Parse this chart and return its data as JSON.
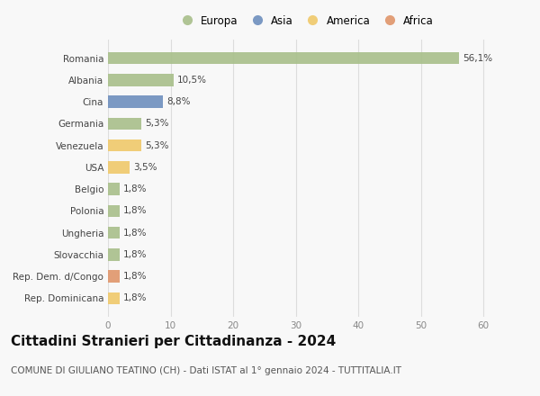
{
  "categories": [
    "Romania",
    "Albania",
    "Cina",
    "Germania",
    "Venezuela",
    "USA",
    "Belgio",
    "Polonia",
    "Ungheria",
    "Slovacchia",
    "Rep. Dem. d/Congo",
    "Rep. Dominicana"
  ],
  "values": [
    56.1,
    10.5,
    8.8,
    5.3,
    5.3,
    3.5,
    1.8,
    1.8,
    1.8,
    1.8,
    1.8,
    1.8
  ],
  "labels": [
    "56,1%",
    "10,5%",
    "8,8%",
    "5,3%",
    "5,3%",
    "3,5%",
    "1,8%",
    "1,8%",
    "1,8%",
    "1,8%",
    "1,8%",
    "1,8%"
  ],
  "colors": [
    "#a8bf8a",
    "#a8bf8a",
    "#6e8fbe",
    "#a8bf8a",
    "#f0c96a",
    "#f0c96a",
    "#a8bf8a",
    "#a8bf8a",
    "#a8bf8a",
    "#a8bf8a",
    "#e0956a",
    "#f0c96a"
  ],
  "legend_labels": [
    "Europa",
    "Asia",
    "America",
    "Africa"
  ],
  "legend_colors": [
    "#a8bf8a",
    "#6e8fbe",
    "#f0c96a",
    "#e0956a"
  ],
  "xlim": [
    0,
    63
  ],
  "xticks": [
    0,
    10,
    20,
    30,
    40,
    50,
    60
  ],
  "title": "Cittadini Stranieri per Cittadinanza - 2024",
  "subtitle": "COMUNE DI GIULIANO TEATINO (CH) - Dati ISTAT al 1° gennaio 2024 - TUTTITALIA.IT",
  "title_fontsize": 11,
  "subtitle_fontsize": 7.5,
  "bar_height": 0.55,
  "background_color": "#f8f8f8",
  "plot_bg_color": "#f8f8f8",
  "grid_color": "#dddddd",
  "label_fontsize": 7.5,
  "tick_fontsize": 7.5
}
